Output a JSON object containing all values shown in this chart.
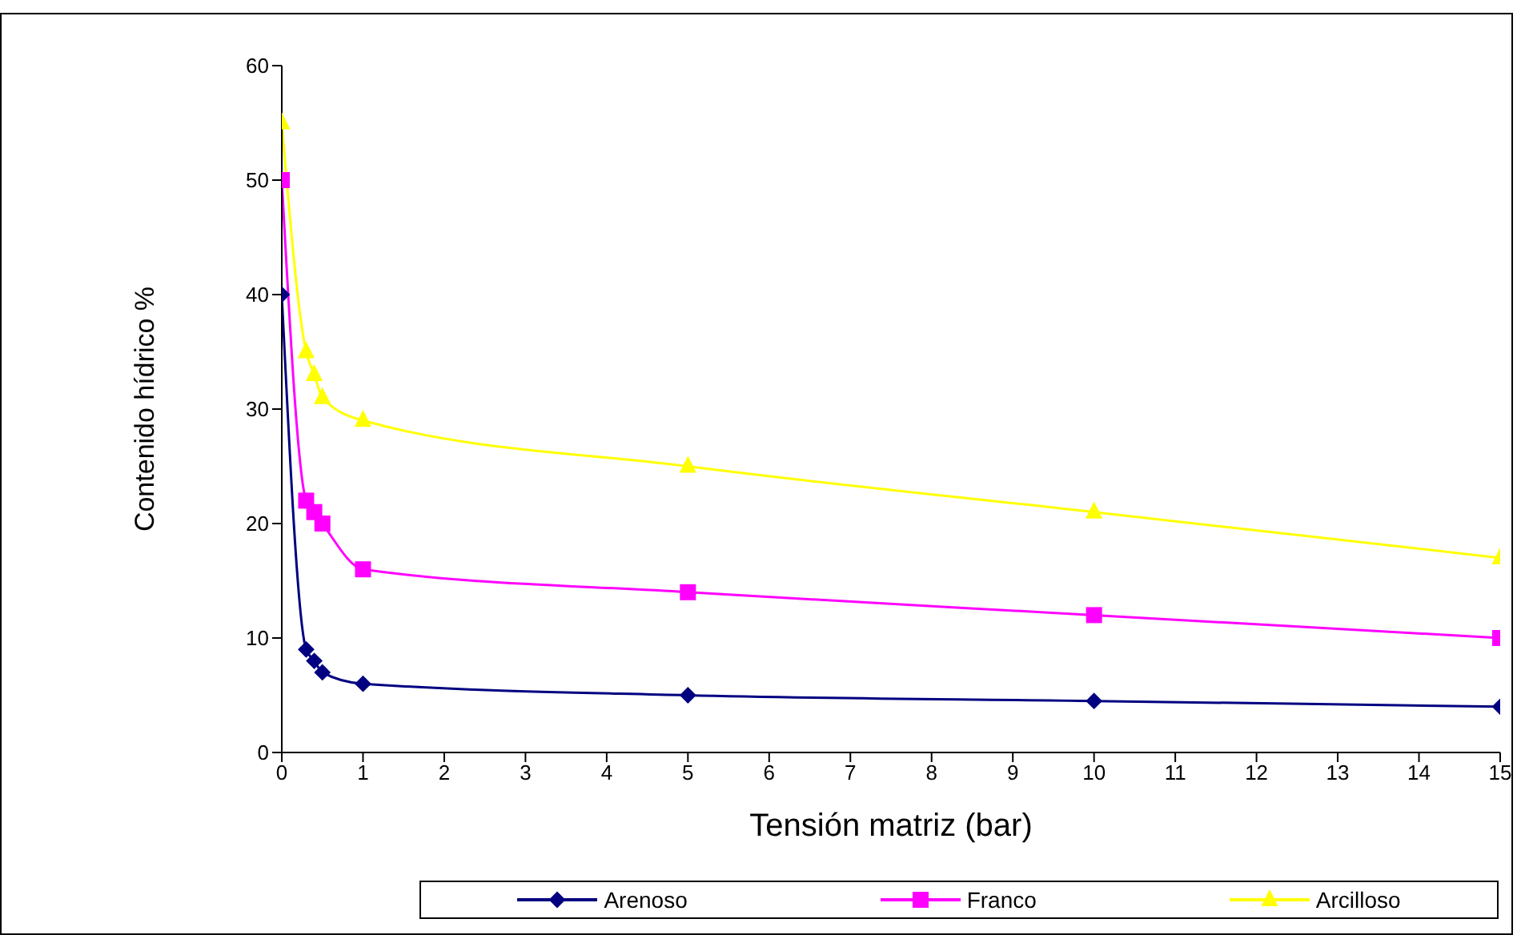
{
  "chart_data": {
    "type": "line",
    "xlabel": "Tensión matriz (bar)",
    "ylabel": "Contenido hídrico %",
    "x": [
      0,
      0.3,
      0.4,
      0.5,
      1,
      5,
      10,
      15
    ],
    "series": [
      {
        "name": "Arenoso",
        "color": "#000080",
        "marker": "diamond",
        "values": [
          40,
          9,
          8,
          7,
          6,
          5,
          4.5,
          4
        ]
      },
      {
        "name": "Franco",
        "color": "#ff00ff",
        "marker": "square",
        "values": [
          50,
          22,
          21,
          20,
          16,
          14,
          12,
          10
        ]
      },
      {
        "name": "Arcilloso",
        "color": "#ffff00",
        "marker": "triangle",
        "values": [
          55,
          35,
          33,
          31,
          29,
          25,
          21,
          17
        ]
      }
    ],
    "xlim": [
      0,
      15
    ],
    "xticks": [
      0,
      1,
      2,
      3,
      4,
      5,
      6,
      7,
      8,
      9,
      10,
      11,
      12,
      13,
      14,
      15
    ],
    "ylim": [
      0,
      60
    ],
    "yticks": [
      0,
      10,
      20,
      30,
      40,
      50,
      60
    ],
    "grid": false,
    "legend": "bottom",
    "line_style": "solid"
  }
}
